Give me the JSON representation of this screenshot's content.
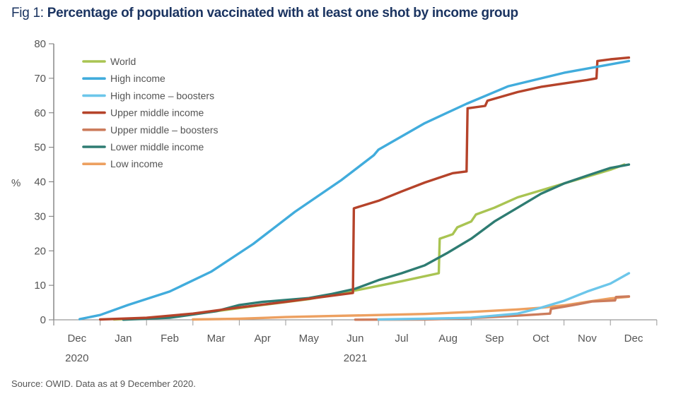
{
  "title": {
    "prefix": "Fig 1: ",
    "main": "Percentage of population vaccinated with at least one shot by income group"
  },
  "source": "Source: OWID. Data as at 9 December 2020.",
  "chart_data": {
    "type": "line",
    "title": "Percentage of population vaccinated with at least one shot by income group",
    "xlabel": "",
    "ylabel": "%",
    "ylim": [
      0,
      80
    ],
    "yticks": [
      "0",
      "10",
      "20",
      "30",
      "40",
      "50",
      "60",
      "70",
      "80"
    ],
    "x_unit": "months since 1 Dec 2020",
    "xlim": [
      0,
      13
    ],
    "xtick_labels": [
      "Dec",
      "Jan",
      "Feb",
      "Mar",
      "Apr",
      "May",
      "Jun",
      "Jul",
      "Aug",
      "Sep",
      "Oct",
      "Nov",
      "Dec"
    ],
    "year_labels": [
      {
        "label": "2020",
        "month": 0.5
      },
      {
        "label": "2021",
        "month": 6.5
      }
    ],
    "grid": false,
    "legend_position": "top-left",
    "series": [
      {
        "name": "World",
        "color": "#a9c452",
        "points": [
          [
            1.3,
            0.1
          ],
          [
            2.5,
            0.8
          ],
          [
            3.5,
            2.5
          ],
          [
            4.5,
            4.3
          ],
          [
            5.5,
            6.0
          ],
          [
            6.5,
            8.5
          ],
          [
            7.5,
            11.2
          ],
          [
            8.3,
            13.5
          ],
          [
            8.32,
            23.5
          ],
          [
            8.6,
            24.8
          ],
          [
            8.7,
            26.8
          ],
          [
            9.0,
            28.5
          ],
          [
            9.1,
            30.5
          ],
          [
            9.5,
            32.5
          ],
          [
            10.0,
            35.5
          ],
          [
            10.5,
            37.5
          ],
          [
            11.0,
            39.5
          ],
          [
            11.5,
            41.5
          ],
          [
            12.0,
            43.5
          ],
          [
            12.3,
            45
          ]
        ]
      },
      {
        "name": "High income",
        "color": "#41acdc",
        "points": [
          [
            0.56,
            0.2
          ],
          [
            1.0,
            1.4
          ],
          [
            1.6,
            4.3
          ],
          [
            2.5,
            8.2
          ],
          [
            3.4,
            14
          ],
          [
            4.3,
            22
          ],
          [
            5.2,
            31.3
          ],
          [
            6.2,
            40.5
          ],
          [
            6.9,
            47.7
          ],
          [
            7.0,
            49.3
          ],
          [
            8.0,
            57
          ],
          [
            8.9,
            62.6
          ],
          [
            9.8,
            67.7
          ],
          [
            11.0,
            71.6
          ],
          [
            12.4,
            75
          ]
        ]
      },
      {
        "name": "High income – boosters",
        "color": "#6cc6ea",
        "points": [
          [
            7.0,
            0.1
          ],
          [
            8.0,
            0.3
          ],
          [
            9.0,
            0.6
          ],
          [
            10.0,
            1.8
          ],
          [
            10.5,
            3.5
          ],
          [
            11.0,
            5.5
          ],
          [
            11.5,
            8.2
          ],
          [
            12.0,
            10.5
          ],
          [
            12.4,
            13.5
          ]
        ]
      },
      {
        "name": "Upper middle income",
        "color": "#b5432a",
        "points": [
          [
            1.0,
            0.1
          ],
          [
            2.0,
            0.6
          ],
          [
            3.0,
            1.8
          ],
          [
            4.0,
            3.6
          ],
          [
            5.0,
            5.2
          ],
          [
            6.0,
            7.0
          ],
          [
            6.45,
            7.8
          ],
          [
            6.47,
            32.3
          ],
          [
            7.0,
            34.5
          ],
          [
            7.5,
            37.2
          ],
          [
            8.0,
            39.8
          ],
          [
            8.6,
            42.5
          ],
          [
            8.9,
            43
          ],
          [
            8.92,
            61.3
          ],
          [
            9.3,
            62
          ],
          [
            9.35,
            63.5
          ],
          [
            10.0,
            66
          ],
          [
            10.5,
            67.5
          ],
          [
            11.0,
            68.5
          ],
          [
            11.5,
            69.5
          ],
          [
            11.7,
            70
          ],
          [
            11.72,
            75
          ],
          [
            12.0,
            75.5
          ],
          [
            12.4,
            76
          ]
        ]
      },
      {
        "name": "Upper middle – boosters",
        "color": "#cc7c5c",
        "points": [
          [
            6.5,
            0.05
          ],
          [
            8.0,
            0.1
          ],
          [
            9.0,
            0.5
          ],
          [
            10.0,
            1.2
          ],
          [
            10.7,
            1.8
          ],
          [
            10.72,
            3.2
          ],
          [
            11.0,
            3.8
          ],
          [
            11.3,
            4.5
          ],
          [
            11.6,
            5.3
          ],
          [
            12.1,
            5.6
          ],
          [
            12.12,
            6.6
          ],
          [
            12.4,
            6.8
          ]
        ]
      },
      {
        "name": "Lower middle income",
        "color": "#2e7c72",
        "points": [
          [
            1.5,
            0.05
          ],
          [
            2.5,
            0.6
          ],
          [
            3.5,
            2.5
          ],
          [
            4.0,
            4.3
          ],
          [
            4.5,
            5.2
          ],
          [
            5.5,
            6.3
          ],
          [
            6.0,
            7.5
          ],
          [
            6.5,
            9.0
          ],
          [
            7.0,
            11.5
          ],
          [
            7.5,
            13.5
          ],
          [
            8.0,
            15.8
          ],
          [
            8.5,
            19.5
          ],
          [
            9.0,
            23.5
          ],
          [
            9.5,
            28.5
          ],
          [
            10.0,
            32.5
          ],
          [
            10.5,
            36.5
          ],
          [
            11.0,
            39.5
          ],
          [
            11.5,
            41.8
          ],
          [
            12.0,
            44
          ],
          [
            12.4,
            45
          ]
        ]
      },
      {
        "name": "Low income",
        "color": "#eda060",
        "points": [
          [
            3.0,
            0.1
          ],
          [
            4.0,
            0.3
          ],
          [
            5.0,
            0.8
          ],
          [
            6.0,
            1.1
          ],
          [
            7.0,
            1.4
          ],
          [
            8.0,
            1.7
          ],
          [
            9.0,
            2.3
          ],
          [
            10.0,
            3.0
          ],
          [
            10.5,
            3.5
          ],
          [
            11.0,
            4.2
          ],
          [
            11.5,
            5.2
          ],
          [
            12.0,
            6.2
          ],
          [
            12.4,
            6.7
          ]
        ]
      }
    ]
  }
}
